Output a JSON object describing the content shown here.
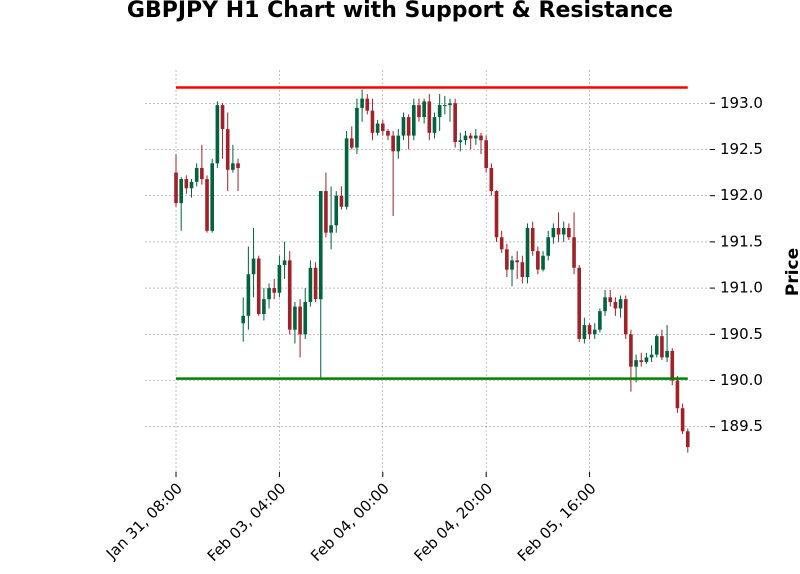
{
  "chart_data": {
    "type": "candlestick",
    "title": "GBPJPY H1 Chart with Support & Resistance",
    "y_label": "Price",
    "up_color": "#006340",
    "down_color": "#a02128",
    "grid": true,
    "y_axis_side": "right",
    "xlim": [
      -6,
      103.3
    ],
    "ylim": [
      189.01,
      193.36
    ],
    "xticks": [
      {
        "value": 0,
        "label": "Jan 31, 08:00"
      },
      {
        "value": 20,
        "label": "Feb 03, 04:00"
      },
      {
        "value": 40,
        "label": "Feb 04, 00:00"
      },
      {
        "value": 60,
        "label": "Feb 04, 20:00"
      },
      {
        "value": 80,
        "label": "Feb 05, 16:00"
      }
    ],
    "yticks": [
      {
        "value": 189.5,
        "label": "189.5"
      },
      {
        "value": 190,
        "label": "190.0"
      },
      {
        "value": 190.5,
        "label": "190.5"
      },
      {
        "value": 191,
        "label": "191.0"
      },
      {
        "value": 191.5,
        "label": "191.5"
      },
      {
        "value": 192,
        "label": "192.0"
      },
      {
        "value": 192.5,
        "label": "192.5"
      },
      {
        "value": 193,
        "label": "193.0"
      }
    ],
    "lines": [
      {
        "value": 193.17,
        "color": "#ff0000"
      },
      {
        "value": 190.02,
        "color": "#008000"
      }
    ],
    "open": [
      192.25,
      191.92,
      192.18,
      192.08,
      192.15,
      192.3,
      192.18,
      191.62,
      192.35,
      192.98,
      192.72,
      192.28,
      192.35,
      190.62,
      190.7,
      191.15,
      191.32,
      190.72,
      190.88,
      191.0,
      190.95,
      191.25,
      191.3,
      190.55,
      190.8,
      190.5,
      190.85,
      191.22,
      190.88,
      192.05,
      191.6,
      191.68,
      192.0,
      191.88,
      192.62,
      192.52,
      192.95,
      193.05,
      192.92,
      192.68,
      192.78,
      192.7,
      192.65,
      192.48,
      192.65,
      192.85,
      192.65,
      192.98,
      192.85,
      193.02,
      192.68,
      192.85,
      192.98,
      192.98,
      193.0,
      192.58,
      192.6,
      192.65,
      192.62,
      192.65,
      192.6,
      192.3,
      192.05,
      191.55,
      191.42,
      191.2,
      191.3,
      191.28,
      191.12,
      191.65,
      191.4,
      191.2,
      191.35,
      191.55,
      191.65,
      191.58,
      191.65,
      191.55,
      191.22,
      190.45,
      190.6,
      190.5,
      190.55,
      190.75,
      190.9,
      190.85,
      190.78,
      190.88,
      190.5,
      190.15,
      190.22,
      190.2,
      190.25,
      190.28,
      190.48,
      190.25,
      190.32,
      190.0,
      189.7,
      189.45
    ],
    "high": [
      192.45,
      192.2,
      192.22,
      192.18,
      192.35,
      192.55,
      192.22,
      192.4,
      193.02,
      193.0,
      192.9,
      192.55,
      192.4,
      190.9,
      191.45,
      191.65,
      191.35,
      191.0,
      191.05,
      191.1,
      191.35,
      191.5,
      191.4,
      190.85,
      190.88,
      191.0,
      191.3,
      191.28,
      192.05,
      192.25,
      192.1,
      192.05,
      192.1,
      192.7,
      192.75,
      193.05,
      193.15,
      193.1,
      193.05,
      192.82,
      192.82,
      192.72,
      192.7,
      192.72,
      192.9,
      192.88,
      193.05,
      193.05,
      193.05,
      193.1,
      192.9,
      193.1,
      193.08,
      193.05,
      193.05,
      192.68,
      192.7,
      192.68,
      192.72,
      192.68,
      192.65,
      192.35,
      192.06,
      191.62,
      191.48,
      191.35,
      191.4,
      191.35,
      191.7,
      191.72,
      191.45,
      191.4,
      191.62,
      191.7,
      191.82,
      191.72,
      191.7,
      191.82,
      191.25,
      190.68,
      190.62,
      190.62,
      190.78,
      190.98,
      190.98,
      190.9,
      190.92,
      190.92,
      190.55,
      190.28,
      190.3,
      190.3,
      190.38,
      190.5,
      190.55,
      190.6,
      190.35,
      190.05,
      189.75,
      189.48
    ],
    "low": [
      191.88,
      191.62,
      192.02,
      191.98,
      192.1,
      192.12,
      191.6,
      191.6,
      192.3,
      192.4,
      192.05,
      192.25,
      192.05,
      190.42,
      190.55,
      190.9,
      190.7,
      190.65,
      190.78,
      190.88,
      190.9,
      191.1,
      190.5,
      190.4,
      190.25,
      190.45,
      190.8,
      190.85,
      190.02,
      191.55,
      191.42,
      191.6,
      191.85,
      191.85,
      192.5,
      192.45,
      192.8,
      192.88,
      192.6,
      192.65,
      192.65,
      192.6,
      191.78,
      192.4,
      192.6,
      192.5,
      192.6,
      192.8,
      192.78,
      192.6,
      192.62,
      192.7,
      192.88,
      192.8,
      192.52,
      192.48,
      192.55,
      192.5,
      192.55,
      192.45,
      192.25,
      192.0,
      191.5,
      191.38,
      191.12,
      191.02,
      191.1,
      191.05,
      191.05,
      191.35,
      191.15,
      191.18,
      191.3,
      191.48,
      191.5,
      191.5,
      191.52,
      191.15,
      190.42,
      190.4,
      190.45,
      190.45,
      190.52,
      190.7,
      190.8,
      190.7,
      190.68,
      190.45,
      189.88,
      189.98,
      190.15,
      190.18,
      190.2,
      190.25,
      190.22,
      190.2,
      189.95,
      189.65,
      189.42,
      189.22
    ],
    "close": [
      191.92,
      192.18,
      192.08,
      192.15,
      192.3,
      192.18,
      191.62,
      192.35,
      192.98,
      192.72,
      192.28,
      192.35,
      192.3,
      190.7,
      191.15,
      191.32,
      190.72,
      190.88,
      191.0,
      190.95,
      191.25,
      191.3,
      190.55,
      190.8,
      190.5,
      190.85,
      191.22,
      190.88,
      192.05,
      191.6,
      191.68,
      192.0,
      191.88,
      192.62,
      192.52,
      192.95,
      193.05,
      192.92,
      192.68,
      192.78,
      192.7,
      192.65,
      192.48,
      192.65,
      192.85,
      192.65,
      192.98,
      192.85,
      193.02,
      192.68,
      192.85,
      192.98,
      192.98,
      193.0,
      192.58,
      192.6,
      192.65,
      192.62,
      192.65,
      192.6,
      192.3,
      192.05,
      191.55,
      191.42,
      191.2,
      191.3,
      191.28,
      191.12,
      191.65,
      191.4,
      191.2,
      191.35,
      191.55,
      191.65,
      191.58,
      191.65,
      191.55,
      191.22,
      190.45,
      190.6,
      190.5,
      190.55,
      190.75,
      190.9,
      190.85,
      190.78,
      190.88,
      190.5,
      190.15,
      190.22,
      190.2,
      190.25,
      190.28,
      190.48,
      190.25,
      190.32,
      190.0,
      189.7,
      189.45,
      189.28
    ]
  }
}
